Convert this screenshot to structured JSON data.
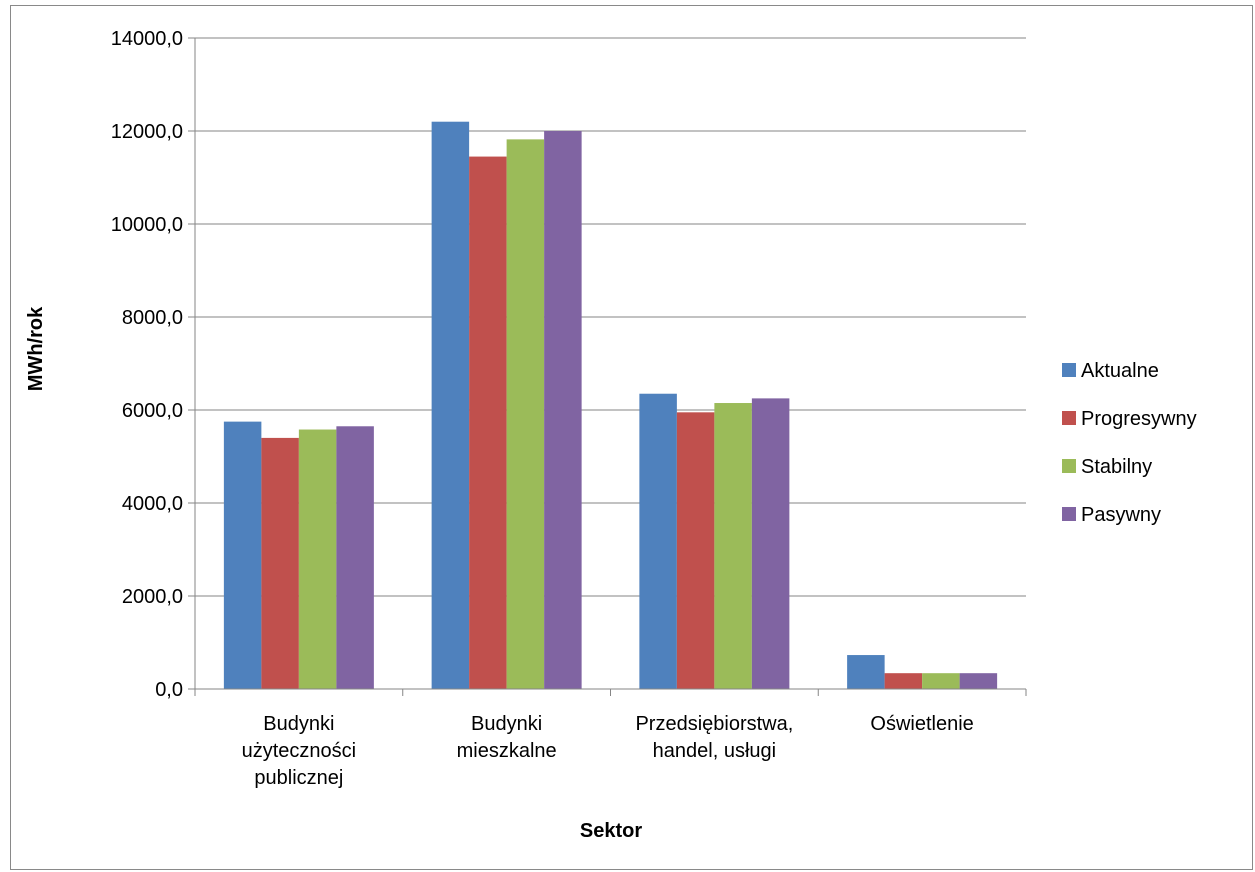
{
  "chart_data": {
    "type": "bar",
    "title": "",
    "xlabel": "Sektor",
    "ylabel": "MWh/rok",
    "ylim": [
      0,
      14000
    ],
    "yticks": [
      0,
      2000,
      4000,
      6000,
      8000,
      10000,
      12000,
      14000
    ],
    "ytick_labels": [
      "0,0",
      "2000,0",
      "4000,0",
      "6000,0",
      "8000,0",
      "10000,0",
      "12000,0",
      "14000,0"
    ],
    "categories": [
      [
        "Budynki",
        "użyteczności",
        "publicznej"
      ],
      [
        "Budynki",
        "mieszkalne"
      ],
      [
        "Przedsiębiorstwa,",
        "handel, usługi"
      ],
      [
        "Oświetlenie"
      ]
    ],
    "series": [
      {
        "name": "Aktualne",
        "color": "#4f81bd",
        "values": [
          5750,
          12200,
          6350,
          730
        ]
      },
      {
        "name": "Progresywny",
        "color": "#c0504d",
        "values": [
          5400,
          11450,
          5950,
          340
        ]
      },
      {
        "name": "Stabilny",
        "color": "#9bbb59",
        "values": [
          5580,
          11820,
          6150,
          340
        ]
      },
      {
        "name": "Pasywny",
        "color": "#8064a2",
        "values": [
          5650,
          12000,
          6250,
          340
        ]
      }
    ],
    "grid": true,
    "legend_position": "right"
  }
}
